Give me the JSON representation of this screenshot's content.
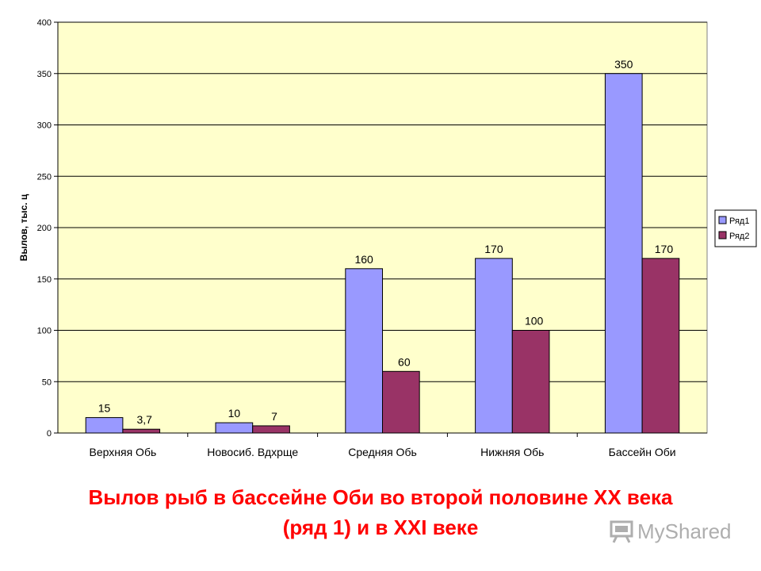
{
  "chart_data": {
    "type": "bar",
    "categories": [
      "Верхняя Обь",
      "Новосиб. Вдхрще",
      "Средняя Обь",
      "Нижняя Обь",
      "Бассейн Оби"
    ],
    "series": [
      {
        "name": "Ряд1",
        "values": [
          15,
          10,
          160,
          170,
          350
        ],
        "labels": [
          "15",
          "10",
          "160",
          "170",
          "350"
        ],
        "color": "#9999ff"
      },
      {
        "name": "Ряд2",
        "values": [
          3.7,
          7,
          60,
          100,
          170
        ],
        "labels": [
          "3,7",
          "7",
          "60",
          "100",
          "170"
        ],
        "color": "#993366"
      }
    ],
    "ylabel": "Вылов, тыс. ц",
    "xlabel": "",
    "ylim": [
      0,
      400
    ],
    "yticks": [
      0,
      50,
      100,
      150,
      200,
      250,
      300,
      350,
      400
    ],
    "grid": true,
    "legend_position": "right",
    "plot_background": "#ffffcc"
  },
  "caption": {
    "line1": "Вылов рыб в бассейне Оби во второй половине XX века",
    "line2": "(ряд 1) и в XXI веке"
  },
  "watermark": {
    "text": "MyShared",
    "icon": "presentation-board-icon"
  }
}
